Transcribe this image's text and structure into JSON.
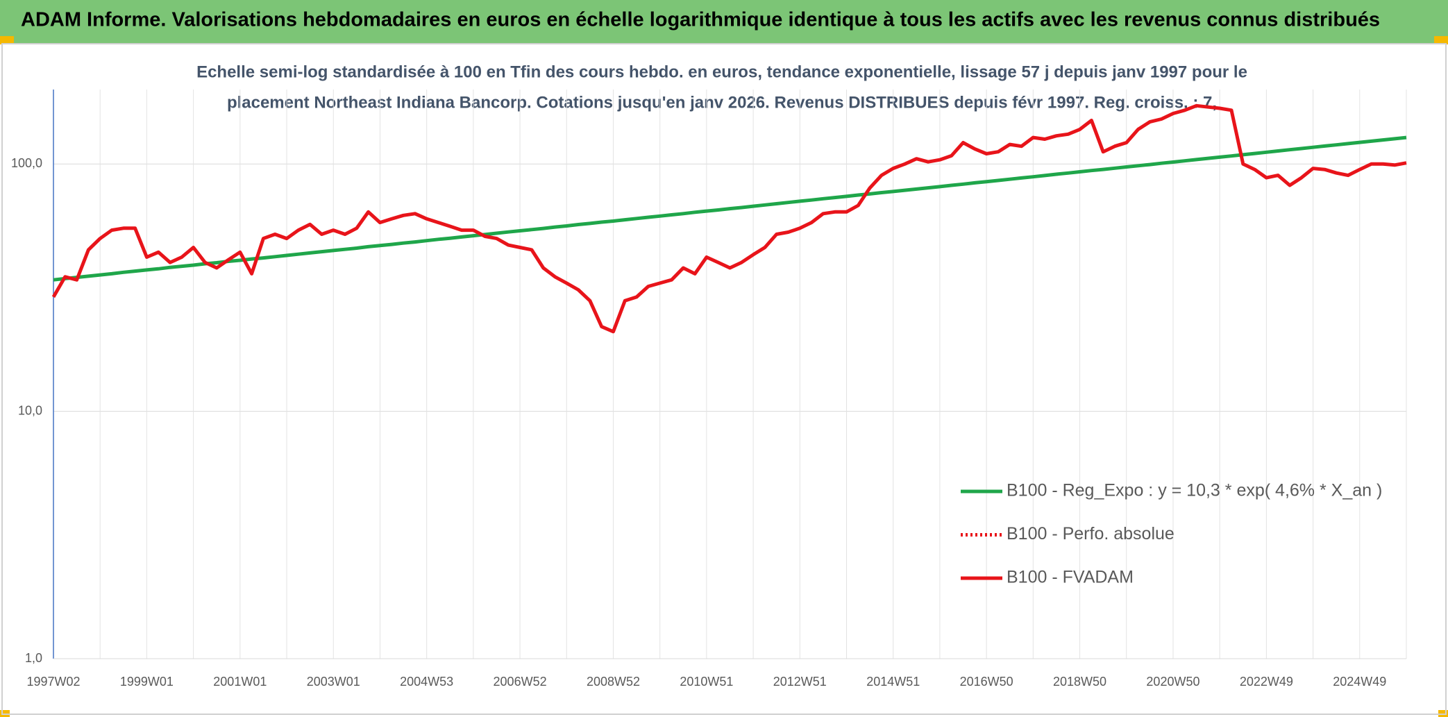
{
  "chart_data": {
    "type": "line",
    "title": "ADAM Informe. Valorisations hebdomadaires en euros en échelle logarithmique identique à tous les actifs avec les revenus connus distribués",
    "subtitle": [
      "Echelle semi-log standardisée à 100 en Tfin des cours hebdo. en euros, tendance exponentielle, lissage 57 j depuis janv 1997 pour le",
      "placement Northeast Indiana Bancorp. Cotations jusqu'en janv 2026. Revenus DISTRIBUES depuis févr 1997. Reg. croiss. : 7,"
    ],
    "categories": [
      "1997W02",
      null,
      null,
      null,
      null,
      null,
      null,
      null,
      "1999W01",
      null,
      null,
      null,
      null,
      null,
      null,
      null,
      "2001W01",
      null,
      null,
      null,
      null,
      null,
      null,
      null,
      "2003W01",
      null,
      null,
      null,
      null,
      null,
      null,
      null,
      "2004W53",
      null,
      null,
      null,
      null,
      null,
      null,
      null,
      "2006W52",
      null,
      null,
      null,
      null,
      null,
      null,
      null,
      "2008W52",
      null,
      null,
      null,
      null,
      null,
      null,
      null,
      "2010W51",
      null,
      null,
      null,
      null,
      null,
      null,
      null,
      "2012W51",
      null,
      null,
      null,
      null,
      null,
      null,
      null,
      "2014W51",
      null,
      null,
      null,
      null,
      null,
      null,
      null,
      "2016W50",
      null,
      null,
      null,
      null,
      null,
      null,
      null,
      "2018W50",
      null,
      null,
      null,
      null,
      null,
      null,
      null,
      "2020W50",
      null,
      null,
      null,
      null,
      null,
      null,
      null,
      "2022W49",
      null,
      null,
      null,
      null,
      null,
      null,
      null,
      "2024W49",
      null,
      null,
      null,
      null
    ],
    "series": [
      {
        "name": "B100 - Reg_Expo : y = 10,3 * exp( 4,6% *  X_an )",
        "color": "#1fa64a",
        "values": [
          34.0,
          34.4,
          34.8,
          35.2,
          35.6,
          36.0,
          36.5,
          36.9,
          37.3,
          37.7,
          38.2,
          38.6,
          39.0,
          39.5,
          39.9,
          40.4,
          40.8,
          41.3,
          41.7,
          42.2,
          42.7,
          43.2,
          43.7,
          44.2,
          44.7,
          45.2,
          45.7,
          46.3,
          46.8,
          47.3,
          47.9,
          48.4,
          49.0,
          49.6,
          50.1,
          50.7,
          51.3,
          51.9,
          52.5,
          53.1,
          53.7,
          54.3,
          54.9,
          55.6,
          56.2,
          56.9,
          57.5,
          58.2,
          58.8,
          59.5,
          60.2,
          60.9,
          61.6,
          62.3,
          63.0,
          63.8,
          64.5,
          65.2,
          66.0,
          66.7,
          67.5,
          68.3,
          69.1,
          69.9,
          70.7,
          71.5,
          72.4,
          73.2,
          74.0,
          74.9,
          75.7,
          76.6,
          77.4,
          78.3,
          79.2,
          80.1,
          81.0,
          82.0,
          82.9,
          83.9,
          84.8,
          85.8,
          86.8,
          87.8,
          88.8,
          89.8,
          90.9,
          91.9,
          93.0,
          94.1,
          95.1,
          96.2,
          97.3,
          98.4,
          99.5,
          100.7,
          101.8,
          103.0,
          104.2,
          105.4,
          106.6,
          107.8,
          109.0,
          110.3,
          111.6,
          112.9,
          114.2,
          115.5,
          116.8,
          118.2,
          119.5,
          120.9,
          122.3,
          123.7,
          125.1,
          126.5,
          128.0
        ]
      },
      {
        "name": "B100 - Perfo. absolue",
        "color": "#e8141a",
        "dashed": true
      },
      {
        "name": "B100 - FVADAM",
        "color": "#e8141a",
        "values": [
          29,
          35,
          34,
          45,
          50,
          54,
          55,
          55,
          42,
          44,
          40,
          42,
          46,
          40,
          38,
          41,
          44,
          36,
          50,
          52,
          50,
          54,
          57,
          52,
          54,
          52,
          55,
          64,
          58,
          60,
          62,
          63,
          60,
          58,
          56,
          54,
          54,
          51,
          50,
          47,
          46,
          45,
          38,
          35,
          33,
          31,
          28,
          22,
          21,
          28,
          29,
          32,
          33,
          34,
          38,
          36,
          42,
          40,
          38,
          40,
          43,
          46,
          52,
          53,
          55,
          58,
          63,
          64,
          64,
          68,
          80,
          90,
          96,
          100,
          105,
          102,
          104,
          108,
          122,
          115,
          110,
          112,
          120,
          118,
          128,
          126,
          130,
          132,
          138,
          150,
          112,
          118,
          122,
          138,
          148,
          152,
          160,
          165,
          172,
          170,
          168,
          165,
          100,
          95,
          88,
          90,
          82,
          88,
          96,
          95,
          92,
          90,
          95,
          100,
          100,
          99,
          101
        ]
      }
    ],
    "ylim": [
      1,
      200
    ],
    "log_y": true,
    "grid": true,
    "yticks": [
      {
        "value": 1,
        "label": "1,0"
      },
      {
        "value": 10,
        "label": "10,0"
      },
      {
        "value": 100,
        "label": "100,0"
      }
    ]
  }
}
